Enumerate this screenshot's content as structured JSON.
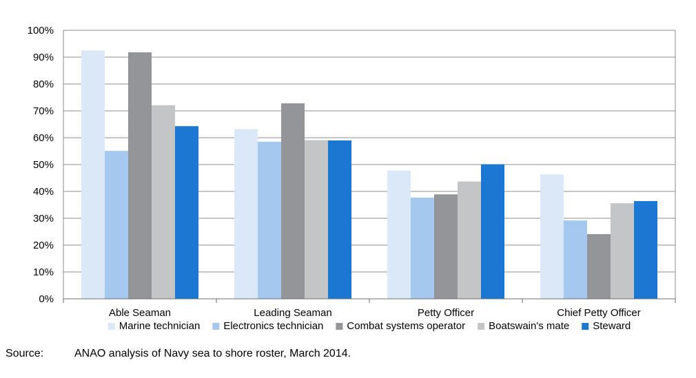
{
  "chart_data": {
    "type": "bar",
    "categories": [
      "Able Seaman",
      "Leading Seaman",
      "Petty Officer",
      "Chief Petty Officer"
    ],
    "series": [
      {
        "name": "Marine technician",
        "color": "#dbe8f7",
        "values": [
          92.5,
          63.2,
          47.8,
          46.3
        ]
      },
      {
        "name": "Electronics technician",
        "color": "#a5c8ee",
        "values": [
          55.1,
          58.5,
          37.7,
          29.2
        ]
      },
      {
        "name": "Combat systems operator",
        "color": "#939598",
        "values": [
          91.8,
          72.8,
          38.9,
          24.1
        ]
      },
      {
        "name": "Boatswain's mate",
        "color": "#c4c5c7",
        "values": [
          72.1,
          59.1,
          43.7,
          35.6
        ]
      },
      {
        "name": "Steward",
        "color": "#1c77d2",
        "values": [
          64.3,
          59.0,
          50.1,
          36.4
        ]
      }
    ],
    "ylim": [
      0,
      100
    ],
    "yticks": [
      "0%",
      "10%",
      "20%",
      "30%",
      "40%",
      "50%",
      "60%",
      "70%",
      "80%",
      "90%",
      "100%"
    ],
    "grid": true,
    "legend": "bottom"
  },
  "source": {
    "label": "Source:",
    "text": "ANAO analysis of Navy sea to shore roster, March 2014."
  }
}
